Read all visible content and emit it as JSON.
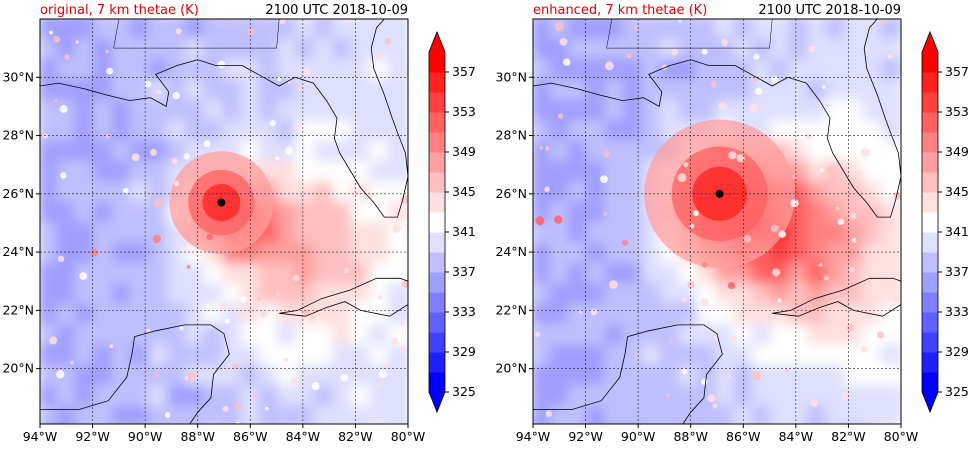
{
  "chart_data": [
    {
      "type": "heatmap",
      "title": "original, 7 km thetae (K)",
      "time_label": "2100 UTC 2018-10-09",
      "x_tick_labels": [
        "94°W",
        "92°W",
        "90°W",
        "88°W",
        "86°W",
        "84°W",
        "82°W",
        "80°W"
      ],
      "x_tick_values": [
        -94,
        -92,
        -90,
        -88,
        -86,
        -84,
        -82,
        -80
      ],
      "y_tick_labels": [
        "20°N",
        "22°N",
        "24°N",
        "26°N",
        "28°N",
        "30°N"
      ],
      "y_tick_values": [
        20,
        22,
        24,
        26,
        28,
        30
      ],
      "xlim": [
        -94,
        -80
      ],
      "ylim": [
        18.1,
        32.0
      ],
      "grid": true,
      "storm_center": {
        "lon": -87.1,
        "lat": 25.7
      },
      "peak_thetae": 357,
      "colorbar": {
        "levels": [
          325,
          329,
          333,
          337,
          341,
          345,
          349,
          353,
          357
        ],
        "min": 325,
        "max": 359,
        "extend": "both"
      }
    },
    {
      "type": "heatmap",
      "title": "enhanced, 7 km thetae (K)",
      "time_label": "2100 UTC 2018-10-09",
      "x_tick_labels": [
        "94°W",
        "92°W",
        "90°W",
        "88°W",
        "86°W",
        "84°W",
        "82°W",
        "80°W"
      ],
      "x_tick_values": [
        -94,
        -92,
        -90,
        -88,
        -86,
        -84,
        -82,
        -80
      ],
      "y_tick_labels": [
        "20°N",
        "22°N",
        "24°N",
        "26°N",
        "28°N",
        "30°N"
      ],
      "y_tick_values": [
        20,
        22,
        24,
        26,
        28,
        30
      ],
      "xlim": [
        -94,
        -80
      ],
      "ylim": [
        18.1,
        32.0
      ],
      "grid": true,
      "storm_center": {
        "lon": -86.9,
        "lat": 26.0
      },
      "peak_thetae": 358,
      "colorbar": {
        "levels": [
          325,
          329,
          333,
          337,
          341,
          345,
          349,
          353,
          357
        ],
        "min": 325,
        "max": 359,
        "extend": "both"
      }
    }
  ],
  "colors": {
    "scale_low": "#0000ff",
    "scale_mid": "#ffffff",
    "scale_high": "#ff0000",
    "title_color": "#e00000",
    "coast_line": "#000000"
  }
}
